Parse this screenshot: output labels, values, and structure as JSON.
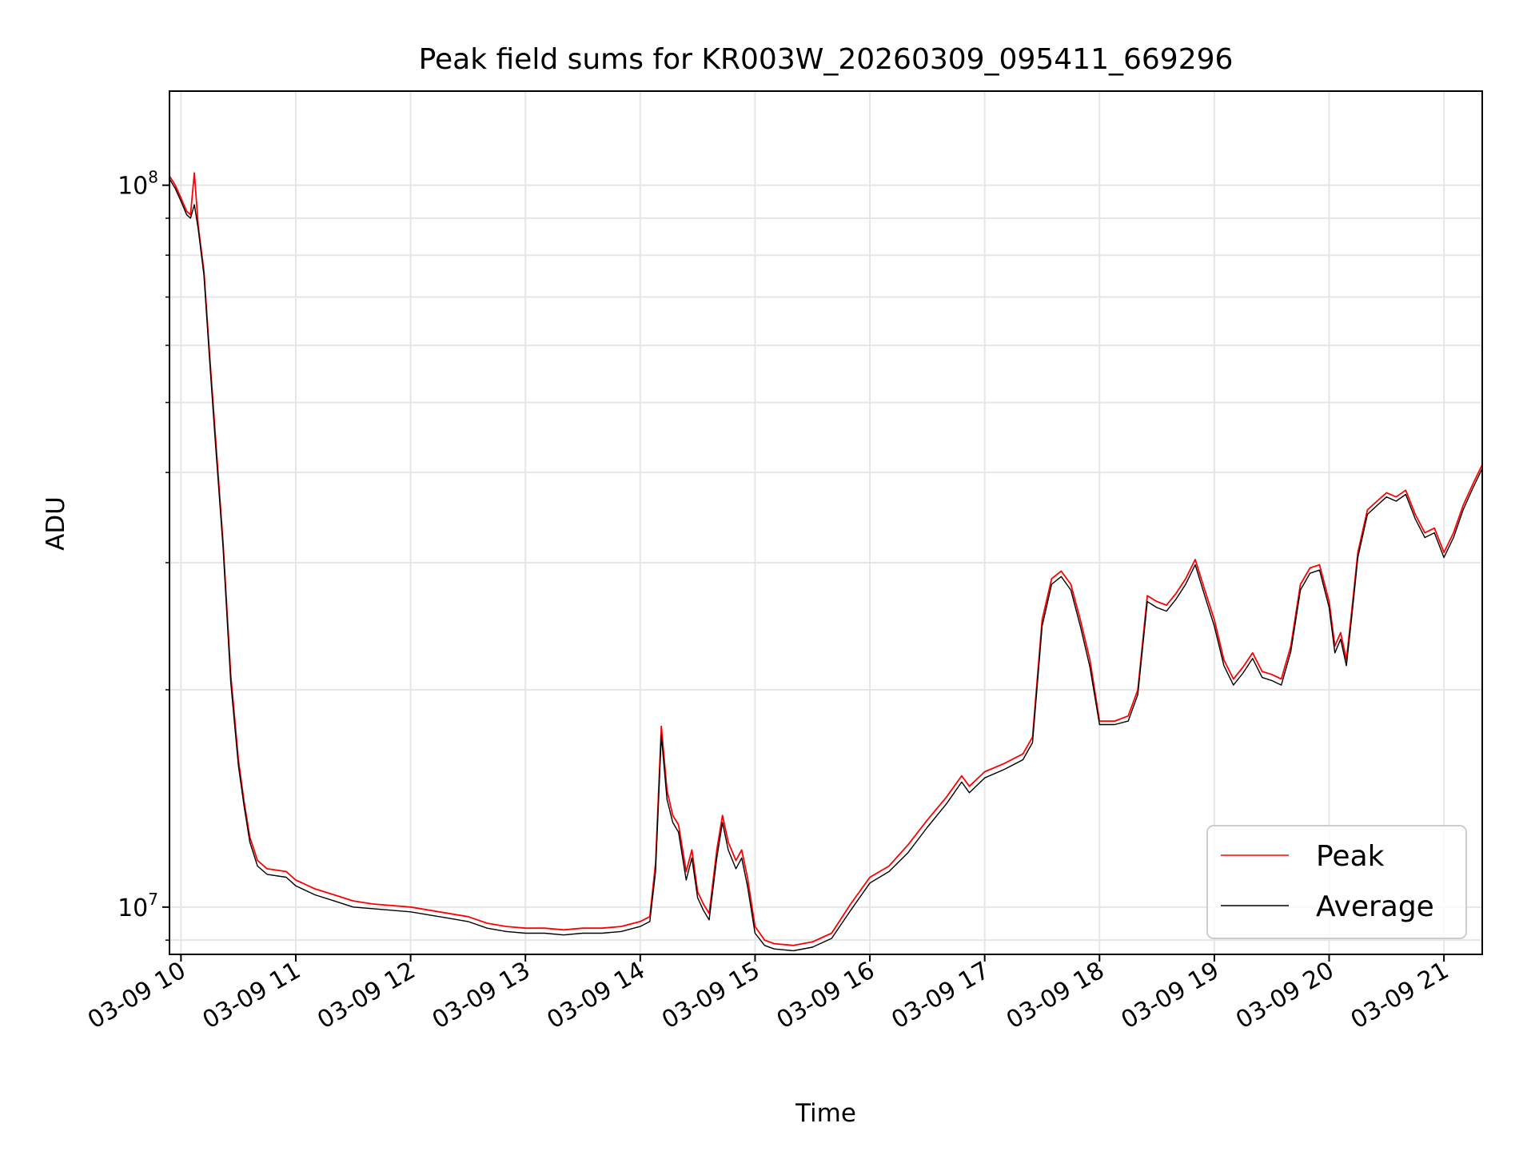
{
  "chart_data": {
    "type": "line",
    "title": "Peak field sums for KR003W_20260309_095411_669296",
    "xlabel": "Time",
    "ylabel": "ADU",
    "x_tick_labels": [
      "03-09 10",
      "03-09 11",
      "03-09 12",
      "03-09 13",
      "03-09 14",
      "03-09 15",
      "03-09 16",
      "03-09 17",
      "03-09 18",
      "03-09 19",
      "03-09 20",
      "03-09 21"
    ],
    "y_tick_labels": [
      {
        "base": "10",
        "exp": "7",
        "value": 10000000
      },
      {
        "base": "10",
        "exp": "8",
        "value": 100000000
      }
    ],
    "y_scale": "log",
    "grid": true,
    "legend_position": "lower-right",
    "xlim": [
      "03-09 09:54",
      "03-09 21:20"
    ],
    "ylim": [
      8600000,
      135000000
    ],
    "series": [
      {
        "name": "Peak",
        "color": "#ff0000",
        "points": [
          [
            "03-09 09:54",
            103000000
          ],
          [
            "03-09 09:57",
            100000000
          ],
          [
            "03-09 10:00",
            96000000
          ],
          [
            "03-09 10:03",
            92000000
          ],
          [
            "03-09 10:05",
            91000000
          ],
          [
            "03-09 10:07",
            104000000
          ],
          [
            "03-09 10:09",
            88000000
          ],
          [
            "03-09 10:12",
            76000000
          ],
          [
            "03-09 10:15",
            58000000
          ],
          [
            "03-09 10:18",
            45000000
          ],
          [
            "03-09 10:22",
            32000000
          ],
          [
            "03-09 10:26",
            21000000
          ],
          [
            "03-09 10:30",
            16000000
          ],
          [
            "03-09 10:33",
            14000000
          ],
          [
            "03-09 10:36",
            12500000
          ],
          [
            "03-09 10:40",
            11600000
          ],
          [
            "03-09 10:45",
            11300000
          ],
          [
            "03-09 10:55",
            11200000
          ],
          [
            "03-09 11:00",
            10900000
          ],
          [
            "03-09 11:10",
            10600000
          ],
          [
            "03-09 11:20",
            10400000
          ],
          [
            "03-09 11:30",
            10200000
          ],
          [
            "03-09 11:40",
            10100000
          ],
          [
            "03-09 11:50",
            10050000
          ],
          [
            "03-09 12:00",
            10000000
          ],
          [
            "03-09 12:10",
            9900000
          ],
          [
            "03-09 12:20",
            9800000
          ],
          [
            "03-09 12:30",
            9700000
          ],
          [
            "03-09 12:40",
            9500000
          ],
          [
            "03-09 12:50",
            9400000
          ],
          [
            "03-09 13:00",
            9350000
          ],
          [
            "03-09 13:10",
            9350000
          ],
          [
            "03-09 13:20",
            9300000
          ],
          [
            "03-09 13:30",
            9350000
          ],
          [
            "03-09 13:40",
            9350000
          ],
          [
            "03-09 13:50",
            9400000
          ],
          [
            "03-09 14:00",
            9550000
          ],
          [
            "03-09 14:05",
            9700000
          ],
          [
            "03-09 14:08",
            11500000
          ],
          [
            "03-09 14:11",
            17800000
          ],
          [
            "03-09 14:14",
            14500000
          ],
          [
            "03-09 14:17",
            13400000
          ],
          [
            "03-09 14:20",
            13000000
          ],
          [
            "03-09 14:24",
            11200000
          ],
          [
            "03-09 14:27",
            12000000
          ],
          [
            "03-09 14:30",
            10500000
          ],
          [
            "03-09 14:33",
            10100000
          ],
          [
            "03-09 14:36",
            9800000
          ],
          [
            "03-09 14:40",
            12000000
          ],
          [
            "03-09 14:43",
            13400000
          ],
          [
            "03-09 14:46",
            12300000
          ],
          [
            "03-09 14:50",
            11600000
          ],
          [
            "03-09 14:53",
            12000000
          ],
          [
            "03-09 14:56",
            11000000
          ],
          [
            "03-09 15:00",
            9400000
          ],
          [
            "03-09 15:05",
            9000000
          ],
          [
            "03-09 15:10",
            8900000
          ],
          [
            "03-09 15:20",
            8850000
          ],
          [
            "03-09 15:30",
            8950000
          ],
          [
            "03-09 15:40",
            9200000
          ],
          [
            "03-09 15:50",
            10100000
          ],
          [
            "03-09 16:00",
            11000000
          ],
          [
            "03-09 16:10",
            11400000
          ],
          [
            "03-09 16:20",
            12200000
          ],
          [
            "03-09 16:30",
            13200000
          ],
          [
            "03-09 16:40",
            14200000
          ],
          [
            "03-09 16:48",
            15200000
          ],
          [
            "03-09 16:52",
            14700000
          ],
          [
            "03-09 17:00",
            15400000
          ],
          [
            "03-09 17:10",
            15800000
          ],
          [
            "03-09 17:20",
            16300000
          ],
          [
            "03-09 17:25",
            17200000
          ],
          [
            "03-09 17:30",
            25000000
          ],
          [
            "03-09 17:35",
            28500000
          ],
          [
            "03-09 17:40",
            29200000
          ],
          [
            "03-09 17:45",
            28000000
          ],
          [
            "03-09 17:50",
            25000000
          ],
          [
            "03-09 17:55",
            22000000
          ],
          [
            "03-09 18:00",
            18100000
          ],
          [
            "03-09 18:08",
            18100000
          ],
          [
            "03-09 18:15",
            18400000
          ],
          [
            "03-09 18:20",
            20000000
          ],
          [
            "03-09 18:25",
            27000000
          ],
          [
            "03-09 18:30",
            26500000
          ],
          [
            "03-09 18:35",
            26200000
          ],
          [
            "03-09 18:40",
            27200000
          ],
          [
            "03-09 18:45",
            28500000
          ],
          [
            "03-09 18:50",
            30300000
          ],
          [
            "03-09 18:55",
            27500000
          ],
          [
            "03-09 19:00",
            25000000
          ],
          [
            "03-09 19:05",
            22000000
          ],
          [
            "03-09 19:10",
            20700000
          ],
          [
            "03-09 19:15",
            21500000
          ],
          [
            "03-09 19:20",
            22500000
          ],
          [
            "03-09 19:25",
            21200000
          ],
          [
            "03-09 19:30",
            21000000
          ],
          [
            "03-09 19:35",
            20700000
          ],
          [
            "03-09 19:40",
            23000000
          ],
          [
            "03-09 19:45",
            28000000
          ],
          [
            "03-09 19:50",
            29500000
          ],
          [
            "03-09 19:55",
            29800000
          ],
          [
            "03-09 20:00",
            26500000
          ],
          [
            "03-09 20:03",
            23000000
          ],
          [
            "03-09 20:06",
            24000000
          ],
          [
            "03-09 20:09",
            22000000
          ],
          [
            "03-09 20:12",
            26000000
          ],
          [
            "03-09 20:15",
            31000000
          ],
          [
            "03-09 20:20",
            35500000
          ],
          [
            "03-09 20:25",
            36500000
          ],
          [
            "03-09 20:30",
            37500000
          ],
          [
            "03-09 20:35",
            37000000
          ],
          [
            "03-09 20:40",
            37800000
          ],
          [
            "03-09 20:45",
            35000000
          ],
          [
            "03-09 20:50",
            33000000
          ],
          [
            "03-09 20:55",
            33500000
          ],
          [
            "03-09 21:00",
            31000000
          ],
          [
            "03-09 21:05",
            33000000
          ],
          [
            "03-09 21:10",
            36000000
          ],
          [
            "03-09 21:15",
            38500000
          ],
          [
            "03-09 21:20",
            41000000
          ]
        ]
      },
      {
        "name": "Average",
        "color": "#000000",
        "points": [
          [
            "03-09 09:54",
            102000000
          ],
          [
            "03-09 09:57",
            99000000
          ],
          [
            "03-09 10:00",
            95000000
          ],
          [
            "03-09 10:03",
            91000000
          ],
          [
            "03-09 10:05",
            90000000
          ],
          [
            "03-09 10:07",
            94000000
          ],
          [
            "03-09 10:09",
            87000000
          ],
          [
            "03-09 10:12",
            75000000
          ],
          [
            "03-09 10:15",
            57000000
          ],
          [
            "03-09 10:18",
            44000000
          ],
          [
            "03-09 10:22",
            31500000
          ],
          [
            "03-09 10:26",
            20500000
          ],
          [
            "03-09 10:30",
            15700000
          ],
          [
            "03-09 10:33",
            13800000
          ],
          [
            "03-09 10:36",
            12300000
          ],
          [
            "03-09 10:40",
            11400000
          ],
          [
            "03-09 10:45",
            11100000
          ],
          [
            "03-09 10:55",
            11000000
          ],
          [
            "03-09 11:00",
            10700000
          ],
          [
            "03-09 11:10",
            10400000
          ],
          [
            "03-09 11:20",
            10200000
          ],
          [
            "03-09 11:30",
            10000000
          ],
          [
            "03-09 11:40",
            9950000
          ],
          [
            "03-09 11:50",
            9900000
          ],
          [
            "03-09 12:00",
            9850000
          ],
          [
            "03-09 12:10",
            9750000
          ],
          [
            "03-09 12:20",
            9650000
          ],
          [
            "03-09 12:30",
            9550000
          ],
          [
            "03-09 12:40",
            9350000
          ],
          [
            "03-09 12:50",
            9250000
          ],
          [
            "03-09 13:00",
            9200000
          ],
          [
            "03-09 13:10",
            9200000
          ],
          [
            "03-09 13:20",
            9150000
          ],
          [
            "03-09 13:30",
            9200000
          ],
          [
            "03-09 13:40",
            9200000
          ],
          [
            "03-09 13:50",
            9250000
          ],
          [
            "03-09 14:00",
            9400000
          ],
          [
            "03-09 14:05",
            9550000
          ],
          [
            "03-09 14:08",
            11200000
          ],
          [
            "03-09 14:11",
            17300000
          ],
          [
            "03-09 14:14",
            14100000
          ],
          [
            "03-09 14:17",
            13100000
          ],
          [
            "03-09 14:20",
            12700000
          ],
          [
            "03-09 14:24",
            10900000
          ],
          [
            "03-09 14:27",
            11700000
          ],
          [
            "03-09 14:30",
            10300000
          ],
          [
            "03-09 14:33",
            9900000
          ],
          [
            "03-09 14:36",
            9600000
          ],
          [
            "03-09 14:40",
            11700000
          ],
          [
            "03-09 14:43",
            13100000
          ],
          [
            "03-09 14:46",
            12000000
          ],
          [
            "03-09 14:50",
            11300000
          ],
          [
            "03-09 14:53",
            11700000
          ],
          [
            "03-09 14:56",
            10700000
          ],
          [
            "03-09 15:00",
            9200000
          ],
          [
            "03-09 15:05",
            8850000
          ],
          [
            "03-09 15:10",
            8750000
          ],
          [
            "03-09 15:20",
            8700000
          ],
          [
            "03-09 15:30",
            8800000
          ],
          [
            "03-09 15:40",
            9050000
          ],
          [
            "03-09 15:50",
            9900000
          ],
          [
            "03-09 16:00",
            10800000
          ],
          [
            "03-09 16:10",
            11200000
          ],
          [
            "03-09 16:20",
            11900000
          ],
          [
            "03-09 16:30",
            12900000
          ],
          [
            "03-09 16:40",
            13900000
          ],
          [
            "03-09 16:48",
            14900000
          ],
          [
            "03-09 16:52",
            14400000
          ],
          [
            "03-09 17:00",
            15100000
          ],
          [
            "03-09 17:10",
            15500000
          ],
          [
            "03-09 17:20",
            16000000
          ],
          [
            "03-09 17:25",
            16900000
          ],
          [
            "03-09 17:30",
            24500000
          ],
          [
            "03-09 17:35",
            28000000
          ],
          [
            "03-09 17:40",
            28700000
          ],
          [
            "03-09 17:45",
            27500000
          ],
          [
            "03-09 17:50",
            24500000
          ],
          [
            "03-09 17:55",
            21500000
          ],
          [
            "03-09 18:00",
            17900000
          ],
          [
            "03-09 18:08",
            17900000
          ],
          [
            "03-09 18:15",
            18100000
          ],
          [
            "03-09 18:20",
            19700000
          ],
          [
            "03-09 18:25",
            26500000
          ],
          [
            "03-09 18:30",
            26000000
          ],
          [
            "03-09 18:35",
            25700000
          ],
          [
            "03-09 18:40",
            26700000
          ],
          [
            "03-09 18:45",
            28000000
          ],
          [
            "03-09 18:50",
            29800000
          ],
          [
            "03-09 18:55",
            27000000
          ],
          [
            "03-09 19:00",
            24500000
          ],
          [
            "03-09 19:05",
            21600000
          ],
          [
            "03-09 19:10",
            20300000
          ],
          [
            "03-09 19:15",
            21100000
          ],
          [
            "03-09 19:20",
            22100000
          ],
          [
            "03-09 19:25",
            20800000
          ],
          [
            "03-09 19:30",
            20600000
          ],
          [
            "03-09 19:35",
            20300000
          ],
          [
            "03-09 19:40",
            22600000
          ],
          [
            "03-09 19:45",
            27500000
          ],
          [
            "03-09 19:50",
            29000000
          ],
          [
            "03-09 19:55",
            29300000
          ],
          [
            "03-09 20:00",
            26000000
          ],
          [
            "03-09 20:03",
            22500000
          ],
          [
            "03-09 20:06",
            23500000
          ],
          [
            "03-09 20:09",
            21600000
          ],
          [
            "03-09 20:12",
            25500000
          ],
          [
            "03-09 20:15",
            30500000
          ],
          [
            "03-09 20:20",
            35000000
          ],
          [
            "03-09 20:25",
            36000000
          ],
          [
            "03-09 20:30",
            37000000
          ],
          [
            "03-09 20:35",
            36500000
          ],
          [
            "03-09 20:40",
            37300000
          ],
          [
            "03-09 20:45",
            34500000
          ],
          [
            "03-09 20:50",
            32500000
          ],
          [
            "03-09 20:55",
            33000000
          ],
          [
            "03-09 21:00",
            30500000
          ],
          [
            "03-09 21:05",
            32500000
          ],
          [
            "03-09 21:10",
            35500000
          ],
          [
            "03-09 21:15",
            38000000
          ],
          [
            "03-09 21:20",
            40500000
          ]
        ]
      }
    ]
  }
}
